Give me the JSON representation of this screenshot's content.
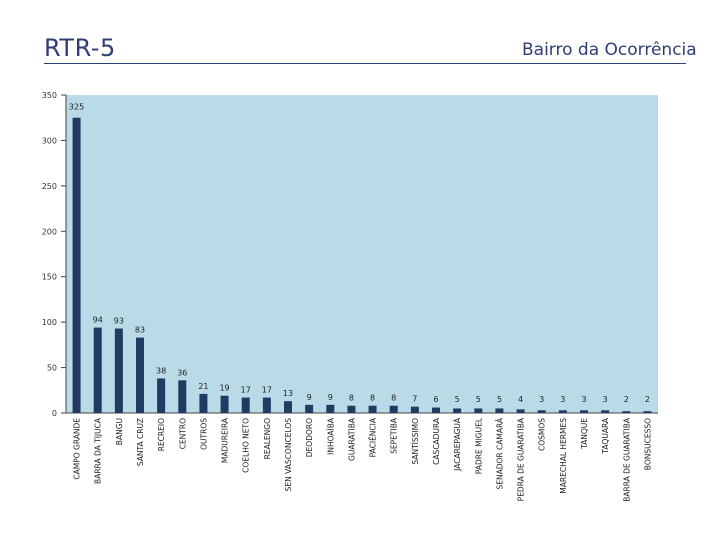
{
  "header": {
    "title": "RTR-5",
    "subtitle": "Bairro da Ocorrência"
  },
  "colors": {
    "plot_background": "#b8dbe7",
    "bar": "#233a63",
    "text": "#2d3e75",
    "axis": "#444444"
  },
  "chart_data": {
    "type": "bar",
    "title": "",
    "xlabel": "",
    "ylabel": "",
    "ylim": [
      0,
      350
    ],
    "yticks": [
      0,
      50,
      100,
      150,
      200,
      250,
      300,
      350
    ],
    "grid": false,
    "categories": [
      "CAMPO GRANDE",
      "BARRA DA TIJUCA",
      "BANGU",
      "SANTA CRUZ",
      "RECREIO",
      "CENTRO",
      "OUTROS",
      "MADUREIRA",
      "COELHO NETO",
      "REALENGO",
      "SEN VASCONCELOS",
      "DEODORO",
      "INHOAÍBA",
      "GUARATIBA",
      "PACIÊNCIA",
      "SEPETIBA",
      "SANTÍSSIMO",
      "CASCADURA",
      "JACAREPAGUÁ",
      "PADRE MIGUEL",
      "SENADOR CAMARÁ",
      "PEDRA DE GUARATIBA",
      "COSMOS",
      "MARECHAL HERMES",
      "TANQUE",
      "TAQUARA",
      "BARRA DE GUARATIBA",
      "BONSUCESSO"
    ],
    "values": [
      325,
      94,
      93,
      83,
      38,
      36,
      21,
      19,
      17,
      17,
      13,
      9,
      9,
      8,
      8,
      8,
      7,
      6,
      5,
      5,
      5,
      4,
      3,
      3,
      3,
      3,
      2,
      2
    ],
    "data_labels": [
      "325",
      "94",
      "93",
      "83",
      "38",
      "36",
      "21",
      "19",
      "17",
      "17",
      "13",
      "9",
      "9",
      "8",
      "8",
      "8",
      "7",
      "6",
      "5",
      "5",
      "5",
      "4",
      "3",
      "3",
      "3",
      "3",
      "2",
      "2"
    ]
  }
}
